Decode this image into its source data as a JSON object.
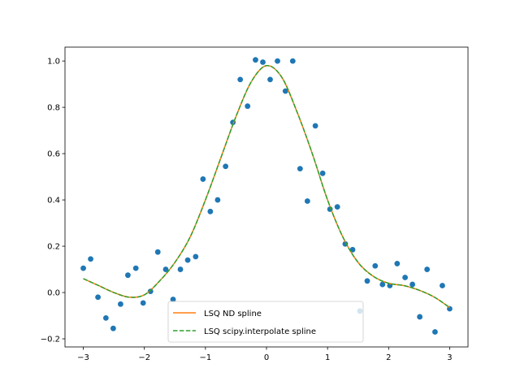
{
  "chart_data": {
    "type": "scatter",
    "title": "",
    "xlabel": "",
    "ylabel": "",
    "xlim": [
      -3.3,
      3.3
    ],
    "ylim": [
      -0.235,
      1.06
    ],
    "xticks": [
      -3,
      -2,
      -1,
      0,
      1,
      2,
      3
    ],
    "xtick_labels": [
      "−3",
      "−2",
      "−1",
      "0",
      "1",
      "2",
      "3"
    ],
    "yticks": [
      -0.2,
      0.0,
      0.2,
      0.4,
      0.6,
      0.8,
      1.0
    ],
    "ytick_labels": [
      "−0.2",
      "0.0",
      "0.2",
      "0.4",
      "0.6",
      "0.8",
      "1.0"
    ],
    "grid": false,
    "legend_position": "bottom-center",
    "series": [
      {
        "kind": "scatter",
        "color": "#1f77b4",
        "x": [
          -3.0,
          -2.88,
          -2.76,
          -2.63,
          -2.51,
          -2.39,
          -2.27,
          -2.14,
          -2.02,
          -1.9,
          -1.78,
          -1.65,
          -1.53,
          -1.41,
          -1.29,
          -1.16,
          -1.04,
          -0.92,
          -0.8,
          -0.67,
          -0.55,
          -0.43,
          -0.31,
          -0.18,
          -0.06,
          0.06,
          0.18,
          0.31,
          0.43,
          0.55,
          0.67,
          0.8,
          0.92,
          1.04,
          1.16,
          1.29,
          1.41,
          1.53,
          1.65,
          1.78,
          1.9,
          2.02,
          2.14,
          2.27,
          2.39,
          2.51,
          2.63,
          2.76,
          2.88,
          3.0
        ],
        "y": [
          0.105,
          0.145,
          -0.02,
          -0.11,
          -0.155,
          -0.05,
          0.075,
          0.105,
          -0.045,
          0.005,
          0.175,
          0.1,
          -0.03,
          0.1,
          0.14,
          0.155,
          0.49,
          0.35,
          0.4,
          0.545,
          0.735,
          0.92,
          0.805,
          1.005,
          0.995,
          0.92,
          1.0,
          0.87,
          1.0,
          0.535,
          0.395,
          0.72,
          0.515,
          0.36,
          0.37,
          0.21,
          0.185,
          -0.08,
          0.05,
          0.115,
          0.035,
          0.03,
          0.125,
          0.065,
          0.035,
          -0.105,
          0.1,
          -0.17,
          0.03,
          -0.07
        ]
      },
      {
        "kind": "line",
        "name": "LSQ ND spline",
        "color": "#ff7f0e",
        "dash": "solid",
        "x": [
          -3.0,
          -2.75,
          -2.5,
          -2.25,
          -2.0,
          -1.75,
          -1.5,
          -1.25,
          -1.0,
          -0.75,
          -0.5,
          -0.25,
          0.0,
          0.25,
          0.5,
          0.75,
          1.0,
          1.25,
          1.5,
          1.75,
          2.0,
          2.25,
          2.5,
          2.75,
          3.0
        ],
        "y": [
          0.06,
          0.03,
          0.0,
          -0.02,
          -0.01,
          0.05,
          0.13,
          0.24,
          0.4,
          0.58,
          0.76,
          0.91,
          0.98,
          0.93,
          0.78,
          0.6,
          0.4,
          0.24,
          0.13,
          0.07,
          0.04,
          0.03,
          0.01,
          -0.02,
          -0.065
        ]
      },
      {
        "kind": "line",
        "name": "LSQ scipy.interpolate spline",
        "color": "#2ca02c",
        "dash": "dashed",
        "x": [
          -3.0,
          -2.75,
          -2.5,
          -2.25,
          -2.0,
          -1.75,
          -1.5,
          -1.25,
          -1.0,
          -0.75,
          -0.5,
          -0.25,
          0.0,
          0.25,
          0.5,
          0.75,
          1.0,
          1.25,
          1.5,
          1.75,
          2.0,
          2.25,
          2.5,
          2.75,
          3.0
        ],
        "y": [
          0.06,
          0.03,
          0.0,
          -0.02,
          -0.01,
          0.05,
          0.13,
          0.24,
          0.4,
          0.58,
          0.76,
          0.91,
          0.98,
          0.93,
          0.78,
          0.6,
          0.4,
          0.24,
          0.13,
          0.07,
          0.04,
          0.03,
          0.01,
          -0.02,
          -0.065
        ]
      }
    ],
    "legend": [
      {
        "label": "LSQ ND spline",
        "color": "#ff7f0e",
        "dash": "solid"
      },
      {
        "label": "LSQ scipy.interpolate spline",
        "color": "#2ca02c",
        "dash": "dashed"
      }
    ]
  }
}
